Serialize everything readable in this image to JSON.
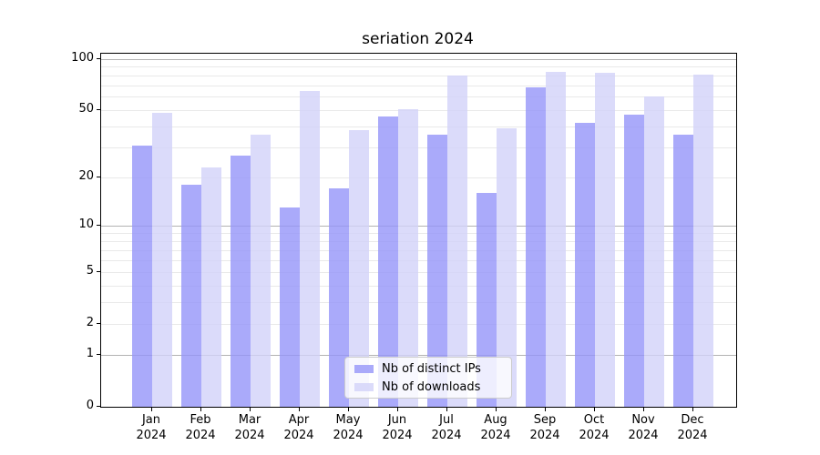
{
  "title": "seriation 2024",
  "chart_data": {
    "type": "bar",
    "title": "seriation 2024",
    "categories": [
      "Jan 2024",
      "Feb 2024",
      "Mar 2024",
      "Apr 2024",
      "May 2024",
      "Jun 2024",
      "Jul 2024",
      "Aug 2024",
      "Sep 2024",
      "Oct 2024",
      "Nov 2024",
      "Dec 2024"
    ],
    "series": [
      {
        "name": "Nb of distinct IPs",
        "color": "rgba(149,149,249,0.8)",
        "values": [
          31,
          18,
          27,
          13,
          17,
          46,
          36,
          16,
          68,
          42,
          47,
          36
        ]
      },
      {
        "name": "Nb of downloads",
        "color": "rgba(210,210,249,0.8)",
        "values": [
          48,
          23,
          36,
          65,
          38,
          51,
          80,
          39,
          84,
          83,
          60,
          81
        ]
      }
    ],
    "xlabel": "",
    "ylabel": "",
    "yscale": "log1p",
    "ylim": [
      0,
      107
    ],
    "yticks": [
      0,
      1,
      2,
      5,
      10,
      20,
      50,
      100
    ],
    "major_grid_values": [
      1,
      10,
      100
    ],
    "minor_grid_values": [
      2,
      3,
      4,
      5,
      6,
      7,
      8,
      9,
      20,
      30,
      40,
      50,
      60,
      70,
      80,
      90
    ],
    "grid": true,
    "legend_position": "lower center"
  },
  "colors": {
    "background": "#ffffff",
    "axis": "#000000",
    "major_grid": "#b3b3b3",
    "minor_grid": "#e9e9e9",
    "bar_distinct_ips": "rgba(149,149,249,0.8)",
    "bar_downloads": "rgba(210,210,249,0.8)",
    "legend_border": "#cccccc"
  }
}
